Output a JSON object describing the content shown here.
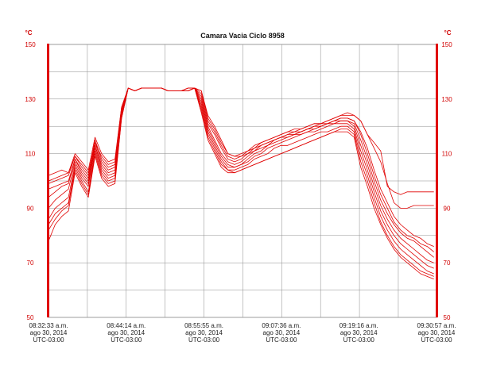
{
  "chart_data": {
    "type": "line",
    "title": "Camara Vacia Ciclo 8958",
    "ylabel_left": "°C",
    "ylabel_right": "°C",
    "ylim": [
      50,
      150
    ],
    "yticks": [
      50,
      70,
      90,
      110,
      130,
      150
    ],
    "grid": true,
    "color": "#e00000",
    "x": [
      0,
      1,
      2,
      3,
      4,
      5,
      6,
      7,
      8,
      9,
      10,
      11,
      12,
      13,
      14,
      15,
      16,
      17,
      18,
      19,
      20,
      21,
      22,
      23,
      24,
      25,
      26,
      27,
      28,
      29,
      30,
      31,
      32,
      33,
      34,
      35,
      36,
      37,
      38,
      39,
      40,
      41,
      42,
      43,
      44,
      45,
      46,
      47,
      48,
      49,
      50,
      51,
      52,
      53,
      54,
      55,
      56,
      57,
      58
    ],
    "xlim": [
      0,
      58.4
    ],
    "xticks": [
      {
        "pos": 0,
        "time": "08:32:33 a.m.",
        "date": "ago 30, 2014",
        "tz": "UTC-03:00"
      },
      {
        "pos": 11.7,
        "time": "08:44:14 a.m.",
        "date": "ago 30, 2014",
        "tz": "UTC-03:00"
      },
      {
        "pos": 23.4,
        "time": "08:55:55 a.m.",
        "date": "ago 30, 2014",
        "tz": "UTC-03:00"
      },
      {
        "pos": 35.05,
        "time": "09:07:36 a.m.",
        "date": "ago 30, 2014",
        "tz": "UTC-03:00"
      },
      {
        "pos": 46.7,
        "time": "09:19:16 a.m.",
        "date": "ago 30, 2014",
        "tz": "UTC-03:00"
      },
      {
        "pos": 58.4,
        "time": "09:30:57 a.m.",
        "date": "ago 30, 2014",
        "tz": "UTC-03:00"
      }
    ],
    "series": [
      {
        "values": [
          102,
          103,
          104,
          103,
          110,
          107,
          104,
          116,
          110,
          107,
          108,
          127,
          134,
          133,
          134,
          134,
          134,
          134,
          133,
          133,
          133,
          134,
          134,
          133,
          124,
          120,
          115,
          110,
          109,
          110,
          111,
          113,
          114,
          115,
          116,
          117,
          118,
          119,
          119,
          120,
          121,
          121,
          122,
          123,
          124,
          125,
          124,
          122,
          117,
          114,
          111,
          98,
          96,
          95,
          96,
          96,
          96,
          96,
          96
        ]
      },
      {
        "values": [
          100,
          101,
          102,
          103,
          109,
          106,
          103,
          114,
          109,
          106,
          107,
          127,
          134,
          133,
          134,
          134,
          134,
          134,
          133,
          133,
          133,
          134,
          134,
          133,
          123,
          119,
          114,
          110,
          109,
          109,
          111,
          112,
          114,
          115,
          116,
          117,
          118,
          118,
          119,
          120,
          121,
          121,
          122,
          123,
          124,
          124,
          124,
          122,
          117,
          112,
          107,
          99,
          92,
          90,
          90,
          91,
          91,
          91,
          91
        ]
      },
      {
        "values": [
          99,
          100,
          101,
          102,
          109,
          105,
          102,
          115,
          108,
          105,
          106,
          126,
          134,
          133,
          134,
          134,
          134,
          134,
          133,
          133,
          133,
          134,
          134,
          132,
          122,
          118,
          113,
          109,
          108,
          109,
          110,
          112,
          113,
          114,
          115,
          116,
          117,
          118,
          118,
          119,
          120,
          121,
          121,
          122,
          123,
          123,
          122,
          118,
          112,
          104,
          97,
          92,
          87,
          84,
          82,
          80,
          79,
          77,
          76
        ]
      },
      {
        "values": [
          97,
          98,
          99,
          100,
          108,
          104,
          101,
          114,
          107,
          104,
          105,
          126,
          134,
          133,
          134,
          134,
          134,
          134,
          133,
          133,
          133,
          133,
          134,
          131,
          121,
          117,
          112,
          108,
          107,
          108,
          110,
          111,
          113,
          114,
          115,
          116,
          117,
          117,
          118,
          119,
          120,
          120,
          121,
          122,
          123,
          123,
          122,
          117,
          110,
          102,
          95,
          90,
          85,
          82,
          80,
          79,
          77,
          76,
          74
        ]
      },
      {
        "values": [
          94,
          96,
          98,
          99,
          108,
          103,
          100,
          113,
          106,
          103,
          104,
          125,
          134,
          133,
          134,
          134,
          134,
          134,
          133,
          133,
          133,
          133,
          134,
          130,
          120,
          115,
          110,
          107,
          106,
          107,
          109,
          111,
          112,
          113,
          115,
          116,
          116,
          117,
          118,
          119,
          119,
          120,
          121,
          122,
          122,
          122,
          121,
          115,
          108,
          100,
          93,
          88,
          84,
          81,
          79,
          78,
          76,
          74,
          72
        ]
      },
      {
        "values": [
          90,
          93,
          95,
          97,
          107,
          102,
          99,
          113,
          105,
          102,
          103,
          125,
          134,
          133,
          134,
          134,
          134,
          134,
          133,
          133,
          133,
          133,
          134,
          129,
          119,
          114,
          109,
          106,
          105,
          106,
          108,
          110,
          111,
          113,
          114,
          115,
          116,
          117,
          117,
          118,
          119,
          120,
          121,
          121,
          122,
          122,
          120,
          113,
          106,
          98,
          91,
          86,
          82,
          79,
          77,
          75,
          73,
          71,
          70
        ]
      },
      {
        "values": [
          86,
          90,
          92,
          94,
          106,
          101,
          98,
          112,
          104,
          101,
          102,
          124,
          134,
          133,
          134,
          134,
          134,
          134,
          133,
          133,
          133,
          133,
          134,
          128,
          118,
          113,
          108,
          105,
          105,
          106,
          107,
          109,
          110,
          112,
          113,
          114,
          115,
          116,
          117,
          118,
          118,
          119,
          120,
          121,
          121,
          121,
          119,
          111,
          104,
          96,
          89,
          84,
          80,
          77,
          75,
          73,
          71,
          69,
          68
        ]
      },
      {
        "values": [
          84,
          88,
          90,
          92,
          105,
          100,
          96,
          111,
          103,
          100,
          101,
          124,
          134,
          133,
          134,
          134,
          134,
          134,
          133,
          133,
          133,
          133,
          134,
          127,
          117,
          112,
          107,
          104,
          104,
          105,
          106,
          108,
          109,
          110,
          112,
          113,
          113,
          114,
          115,
          116,
          117,
          118,
          118,
          119,
          120,
          120,
          118,
          109,
          102,
          94,
          87,
          82,
          78,
          75,
          73,
          71,
          69,
          67,
          66
        ]
      },
      {
        "values": [
          82,
          86,
          89,
          91,
          104,
          99,
          95,
          110,
          102,
          99,
          100,
          123,
          134,
          133,
          134,
          134,
          134,
          134,
          133,
          133,
          133,
          133,
          134,
          126,
          116,
          111,
          106,
          104,
          103,
          104,
          105,
          106,
          107,
          108,
          109,
          110,
          111,
          112,
          113,
          114,
          115,
          116,
          117,
          118,
          119,
          119,
          117,
          107,
          100,
          92,
          85,
          80,
          76,
          73,
          71,
          69,
          67,
          66,
          65
        ]
      },
      {
        "values": [
          78,
          84,
          87,
          89,
          103,
          98,
          94,
          109,
          101,
          98,
          99,
          123,
          134,
          133,
          134,
          134,
          134,
          134,
          133,
          133,
          133,
          133,
          134,
          125,
          115,
          110,
          105,
          103,
          103,
          104,
          105,
          106,
          107,
          108,
          109,
          110,
          111,
          112,
          113,
          114,
          115,
          116,
          117,
          118,
          118,
          118,
          116,
          105,
          98,
          90,
          84,
          79,
          75,
          72,
          70,
          68,
          66,
          65,
          64
        ]
      }
    ]
  }
}
